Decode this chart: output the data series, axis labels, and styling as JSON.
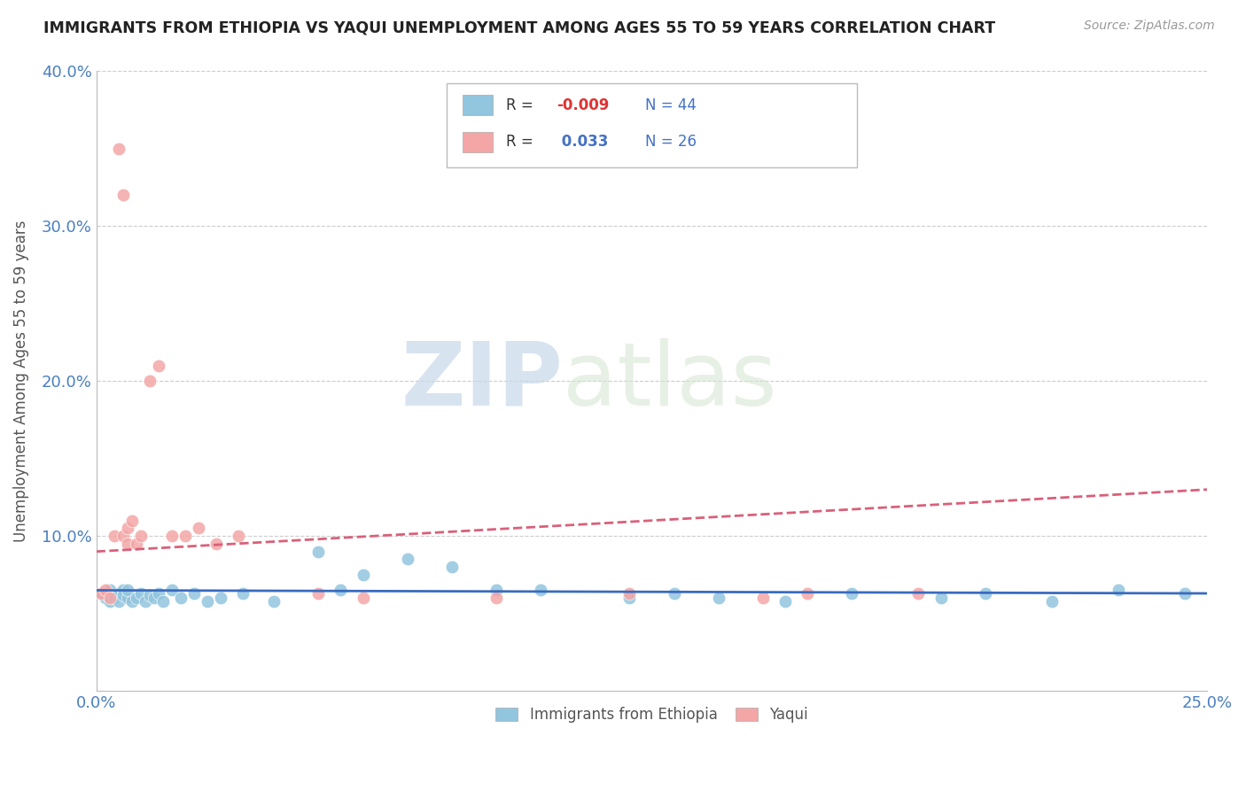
{
  "title": "IMMIGRANTS FROM ETHIOPIA VS YAQUI UNEMPLOYMENT AMONG AGES 55 TO 59 YEARS CORRELATION CHART",
  "source": "Source: ZipAtlas.com",
  "ylabel": "Unemployment Among Ages 55 to 59 years",
  "xlim": [
    0.0,
    0.25
  ],
  "ylim": [
    0.0,
    0.4
  ],
  "xticks": [
    0.0,
    0.05,
    0.1,
    0.15,
    0.2,
    0.25
  ],
  "xtick_labels": [
    "0.0%",
    "",
    "",
    "",
    "",
    "25.0%"
  ],
  "yticks": [
    0.0,
    0.1,
    0.2,
    0.3,
    0.4
  ],
  "ytick_labels": [
    "",
    "10.0%",
    "20.0%",
    "30.0%",
    "40.0%"
  ],
  "blue_color": "#92c5de",
  "pink_color": "#f4a6a6",
  "trend_blue_color": "#3a6bbf",
  "trend_pink_color": "#d9607a",
  "r_blue": -0.009,
  "n_blue": 44,
  "r_pink": 0.033,
  "n_pink": 26,
  "watermark_zip": "ZIP",
  "watermark_atlas": "atlas",
  "blue_x": [
    0.001,
    0.002,
    0.003,
    0.003,
    0.004,
    0.004,
    0.005,
    0.005,
    0.006,
    0.006,
    0.007,
    0.007,
    0.008,
    0.009,
    0.01,
    0.011,
    0.012,
    0.013,
    0.014,
    0.015,
    0.017,
    0.019,
    0.022,
    0.025,
    0.028,
    0.033,
    0.04,
    0.05,
    0.055,
    0.06,
    0.07,
    0.08,
    0.09,
    0.1,
    0.12,
    0.13,
    0.14,
    0.155,
    0.17,
    0.19,
    0.2,
    0.215,
    0.23,
    0.245
  ],
  "blue_y": [
    0.063,
    0.06,
    0.065,
    0.058,
    0.062,
    0.06,
    0.063,
    0.058,
    0.065,
    0.062,
    0.06,
    0.065,
    0.058,
    0.06,
    0.063,
    0.058,
    0.062,
    0.06,
    0.063,
    0.058,
    0.065,
    0.06,
    0.063,
    0.058,
    0.06,
    0.063,
    0.058,
    0.09,
    0.065,
    0.075,
    0.085,
    0.08,
    0.065,
    0.065,
    0.06,
    0.063,
    0.06,
    0.058,
    0.063,
    0.06,
    0.063,
    0.058,
    0.065,
    0.063
  ],
  "pink_x": [
    0.001,
    0.002,
    0.003,
    0.004,
    0.005,
    0.006,
    0.006,
    0.007,
    0.007,
    0.008,
    0.009,
    0.01,
    0.012,
    0.014,
    0.017,
    0.02,
    0.023,
    0.027,
    0.032,
    0.05,
    0.06,
    0.09,
    0.12,
    0.15,
    0.16,
    0.185
  ],
  "pink_y": [
    0.063,
    0.065,
    0.06,
    0.1,
    0.35,
    0.32,
    0.1,
    0.105,
    0.095,
    0.11,
    0.095,
    0.1,
    0.2,
    0.21,
    0.1,
    0.1,
    0.105,
    0.095,
    0.1,
    0.063,
    0.06,
    0.06,
    0.063,
    0.06,
    0.063,
    0.063
  ],
  "blue_trend_x": [
    0.0,
    0.25
  ],
  "blue_trend_y": [
    0.065,
    0.063
  ],
  "pink_trend_x": [
    0.0,
    0.25
  ],
  "pink_trend_y": [
    0.09,
    0.13
  ]
}
